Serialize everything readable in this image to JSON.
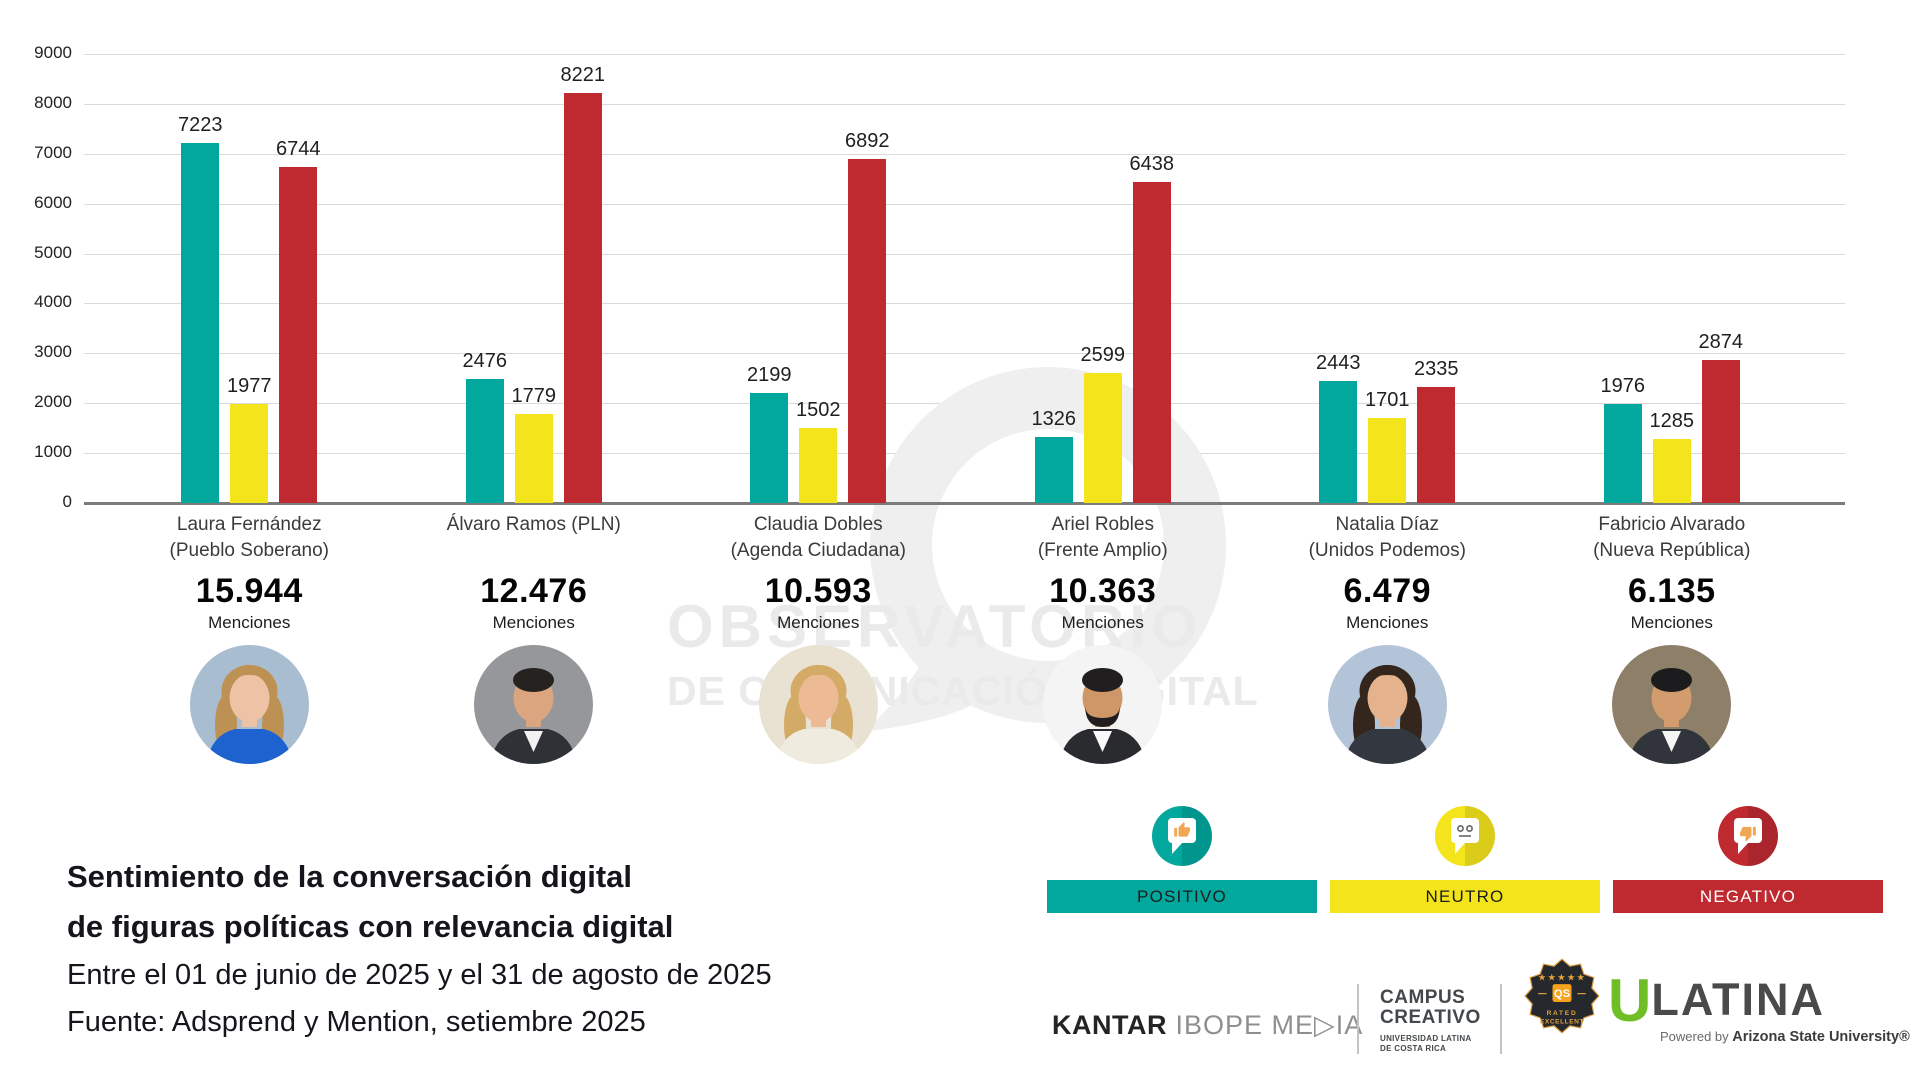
{
  "watermark": {
    "line1": "OBSERVATORIO",
    "line2": "DE COMUNICACIÓN DIGITAL"
  },
  "caption": {
    "bold_line1": "Sentimiento de la conversación digital",
    "bold_line2": "de figuras políticas con relevancia digital",
    "period": "Entre el 01 de junio de 2025 y el 31 de agosto de 2025",
    "source": "Fuente: Adsprend y Mention, setiembre 2025"
  },
  "chart_data": {
    "type": "bar",
    "title": "Sentimiento de la conversación digital de figuras políticas con relevancia digital",
    "xlabel": "",
    "ylabel": "",
    "ylim": [
      0,
      9000
    ],
    "yticks": [
      0,
      1000,
      2000,
      3000,
      4000,
      5000,
      6000,
      7000,
      8000,
      9000
    ],
    "grid": true,
    "legend_position": "bottom-right",
    "categories": [
      "Laura Fernández (Pueblo Soberano)",
      "Álvaro Ramos (PLN)",
      "Claudia Dobles (Agenda Ciudadana)",
      "Ariel Robles (Frente Amplio)",
      "Natalia Díaz (Unidos Podemos)",
      "Fabricio Alvarado (Nueva República)"
    ],
    "series": [
      {
        "name": "POSITIVO",
        "color": "#02A79D",
        "values": [
          7223,
          2476,
          2199,
          1326,
          2443,
          1976
        ]
      },
      {
        "name": "NEUTRO",
        "color": "#F4E41C",
        "values": [
          1977,
          1779,
          1502,
          2599,
          1701,
          1285
        ]
      },
      {
        "name": "NEGATIVO",
        "color": "#BF2A31",
        "values": [
          6744,
          8221,
          6892,
          6438,
          2335,
          2874
        ]
      }
    ],
    "totals_label": "Menciones",
    "totals": [
      "15.944",
      "12.476",
      "10.593",
      "10.363",
      "6.479",
      "6.135"
    ]
  },
  "people": [
    {
      "line1": "Laura Fernández",
      "line2": "(Pueblo Soberano)",
      "mentions": "15.944",
      "avatar": {
        "bg": "#a9bdd1",
        "hair": "#bd9154",
        "skin": "#eec2a4",
        "suit": "#1e62cf",
        "shirt": "",
        "hair_style": "long",
        "beard": false
      }
    },
    {
      "line1": "Álvaro Ramos (PLN)",
      "line2": "",
      "mentions": "12.476",
      "avatar": {
        "bg": "#96979b",
        "hair": "#26221f",
        "skin": "#dba67f",
        "suit": "#2e3136",
        "shirt": "#f2f2f2",
        "hair_style": "short",
        "beard": false
      }
    },
    {
      "line1": "Claudia Dobles",
      "line2": "(Agenda Ciudadana)",
      "mentions": "10.593",
      "avatar": {
        "bg": "#e9e2d3",
        "hair": "#d3aa66",
        "skin": "#ecbb95",
        "suit": "#f0ebdf",
        "shirt": "",
        "hair_style": "long",
        "beard": false
      }
    },
    {
      "line1": "Ariel Robles",
      "line2": "(Frente Amplio)",
      "mentions": "10.363",
      "avatar": {
        "bg": "#f4f4f4",
        "hair": "#201e1e",
        "skin": "#cf9668",
        "suit": "#2a2b2f",
        "shirt": "#fafafa",
        "hair_style": "short",
        "beard": true
      }
    },
    {
      "line1": "Natalia Díaz",
      "line2": "(Unidos Podemos)",
      "mentions": "6.479",
      "avatar": {
        "bg": "#b3c3d8",
        "hair": "#35261d",
        "skin": "#e5b28e",
        "suit": "#333840",
        "shirt": "",
        "hair_style": "long",
        "beard": false
      }
    },
    {
      "line1": "Fabricio Alvarado",
      "line2": "(Nueva República)",
      "mentions": "6.135",
      "avatar": {
        "bg": "#8e7f69",
        "hair": "#1c1c1e",
        "skin": "#d39c6e",
        "suit": "#31353b",
        "shirt": "#f5f5f5",
        "hair_style": "short",
        "beard": false
      }
    }
  ],
  "legend": [
    {
      "label": "POSITIVO",
      "color": "#02A79D",
      "text_color": "#1d1d1b",
      "icon": "thumbs-up-bubble-icon"
    },
    {
      "label": "NEUTRO",
      "color": "#F4E41C",
      "text_color": "#1d1d1b",
      "icon": "neutral-face-bubble-icon"
    },
    {
      "label": "NEGATIVO",
      "color": "#BF2A31",
      "text_color": "#ffffff",
      "icon": "thumbs-down-bubble-icon"
    }
  ],
  "logos": {
    "kantar": {
      "bold": "KANTAR",
      "rest": " IBOPE ME▷IA"
    },
    "campus": {
      "line1": "CAMPUS",
      "line2": "CREATIVO",
      "sub1": "UNIVERSIDAD LATINA",
      "sub2": "DE COSTA RICA"
    },
    "badge": {
      "stars": "★★★★★",
      "qs": "QS",
      "rated": "RATED",
      "excellent": "EXCELLENT"
    },
    "ulatina": {
      "u": "U",
      "rest": "LATINA",
      "powered_prefix": "Powered by ",
      "powered_brand": "Arizona State University®"
    }
  }
}
